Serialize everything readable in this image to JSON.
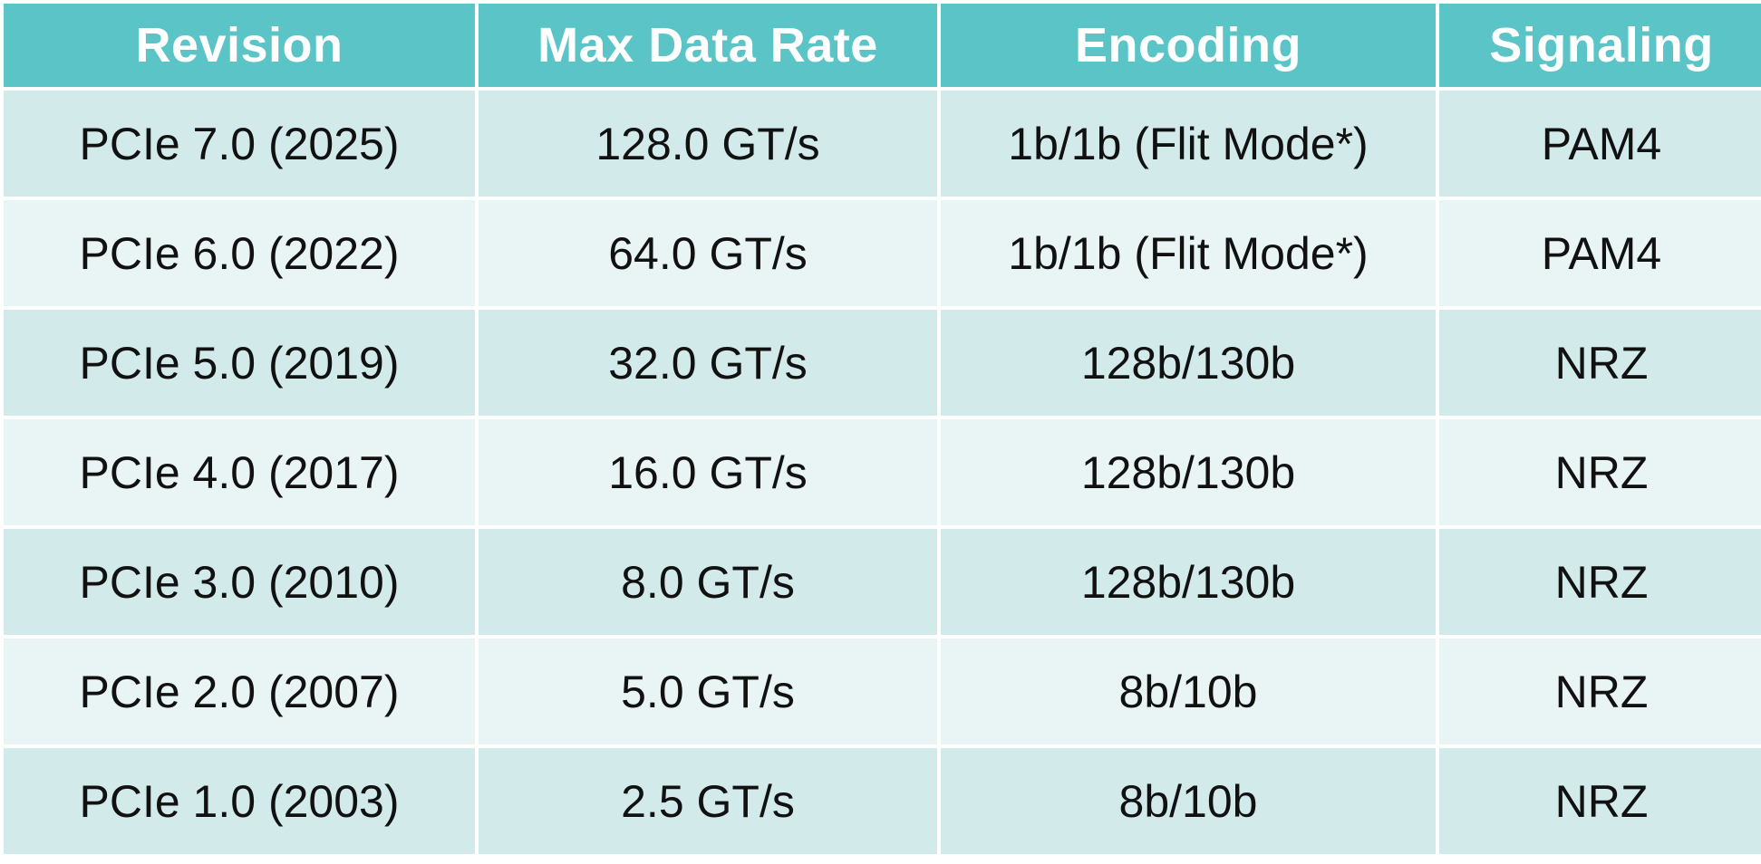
{
  "table": {
    "headers": [
      "Revision",
      "Max Data Rate",
      "Encoding",
      "Signaling"
    ],
    "rows": [
      [
        "PCIe 7.0 (2025)",
        "128.0 GT/s",
        "1b/1b (Flit Mode*)",
        "PAM4"
      ],
      [
        "PCIe 6.0 (2022)",
        "64.0 GT/s",
        "1b/1b (Flit Mode*)",
        "PAM4"
      ],
      [
        "PCIe 5.0 (2019)",
        "32.0 GT/s",
        "128b/130b",
        "NRZ"
      ],
      [
        "PCIe 4.0 (2017)",
        "16.0 GT/s",
        "128b/130b",
        "NRZ"
      ],
      [
        "PCIe 3.0 (2010)",
        "8.0 GT/s",
        "128b/130b",
        "NRZ"
      ],
      [
        "PCIe 2.0 (2007)",
        "5.0 GT/s",
        "8b/10b",
        "NRZ"
      ],
      [
        "PCIe 1.0 (2003)",
        "2.5 GT/s",
        "8b/10b",
        "NRZ"
      ]
    ]
  },
  "colors": {
    "header_bg": "#5ac4c6",
    "header_text": "#ffffff",
    "row_odd_bg": "#d2ebea",
    "row_even_bg": "#e9f5f4",
    "body_text": "#111111"
  }
}
